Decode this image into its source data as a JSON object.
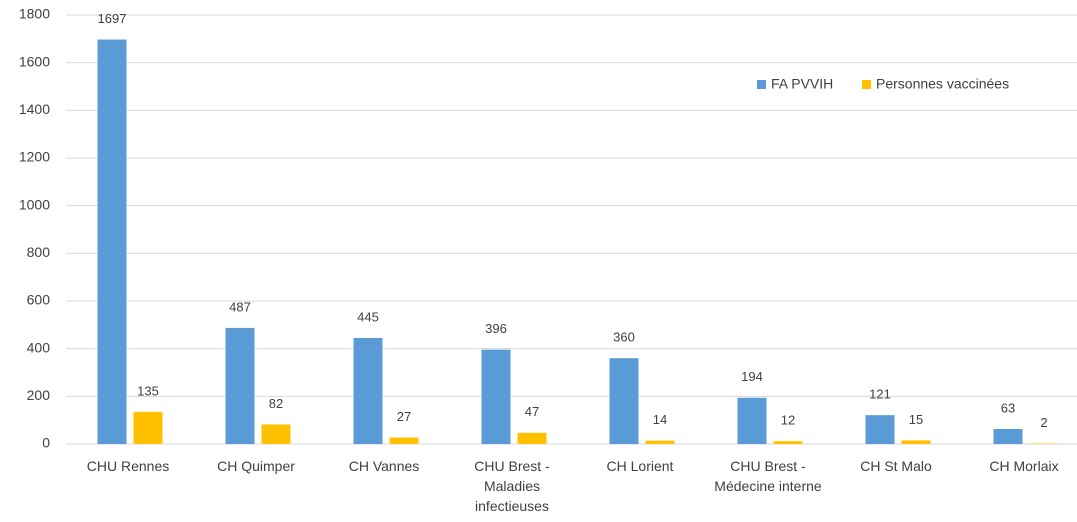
{
  "chart_data": {
    "type": "bar",
    "categories": [
      "CHU Rennes",
      "CH Quimper",
      "CH Vannes",
      "CHU Brest - Maladies infectieuses",
      "CH Lorient",
      "CHU Brest - Médecine interne",
      "CH St Malo",
      "CH Morlaix"
    ],
    "series": [
      {
        "name": "FA PVVIH",
        "color": "#5b9bd5",
        "values": [
          1697,
          487,
          445,
          396,
          360,
          194,
          121,
          63
        ]
      },
      {
        "name": "Personnes vaccinées",
        "color": "#ffc000",
        "values": [
          135,
          82,
          27,
          47,
          14,
          12,
          15,
          2
        ]
      }
    ],
    "ylim": [
      0,
      1800
    ],
    "yticks": [
      0,
      200,
      400,
      600,
      800,
      1000,
      1200,
      1400,
      1600,
      1800
    ],
    "grid": true,
    "legend": "upper right"
  }
}
